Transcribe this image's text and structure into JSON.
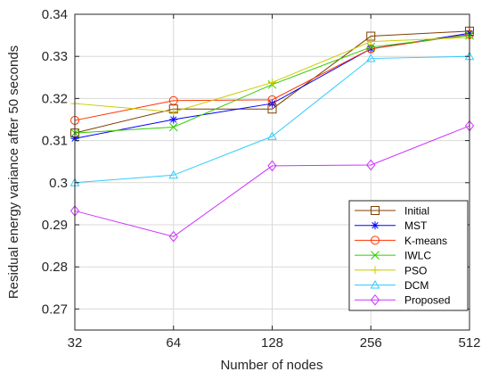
{
  "chart_data": {
    "type": "line",
    "categories": [
      "32",
      "64",
      "128",
      "256",
      "512"
    ],
    "xlabel": "Number of nodes",
    "ylabel": "Residual energy variance after 50  seconds",
    "ylim": [
      0.265,
      0.34
    ],
    "yticks": [
      "0.27",
      "0.28",
      "0.29",
      "0.3",
      "0.31",
      "0.32",
      "0.33",
      "0.34"
    ],
    "grid": true,
    "legend_position": "bottom-right",
    "series": [
      {
        "name": "Initial",
        "color": "#7f3f00",
        "marker": "square",
        "values": [
          0.3118,
          0.3175,
          0.3175,
          0.3348,
          0.336
        ]
      },
      {
        "name": "MST",
        "color": "#0000ff",
        "marker": "asterisk",
        "values": [
          0.3105,
          0.315,
          0.3188,
          0.3318,
          0.3355
        ]
      },
      {
        "name": "K-means",
        "color": "#ff3300",
        "marker": "circle",
        "values": [
          0.3148,
          0.3195,
          0.3197,
          0.3318,
          0.3352
        ]
      },
      {
        "name": "IWLC",
        "color": "#33cc00",
        "marker": "x",
        "values": [
          0.3118,
          0.3132,
          0.3233,
          0.3322,
          0.335
        ]
      },
      {
        "name": "PSO",
        "color": "#cccc00",
        "marker": "plus",
        "values": [
          0.3188,
          0.3168,
          0.3238,
          0.3335,
          0.3345
        ]
      },
      {
        "name": "DCM",
        "color": "#33ccff",
        "marker": "triangle",
        "values": [
          0.3,
          0.3018,
          0.311,
          0.3295,
          0.33
        ]
      },
      {
        "name": "Proposed",
        "color": "#cc33ff",
        "marker": "diamond",
        "values": [
          0.2933,
          0.2872,
          0.304,
          0.3042,
          0.3135
        ]
      }
    ]
  }
}
